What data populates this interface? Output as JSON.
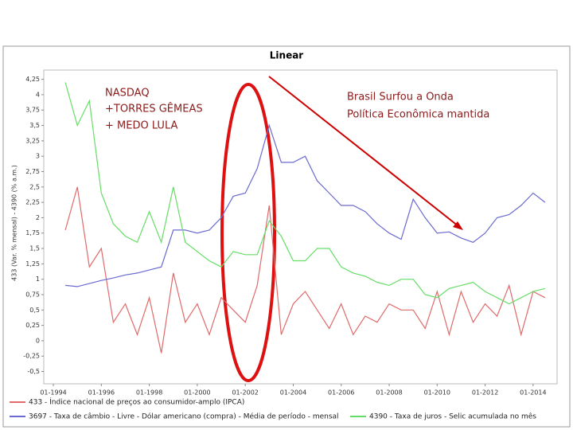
{
  "chart_data": {
    "type": "line",
    "title": "Linear",
    "y_label": "433 (Var. % mensal) - 4390 (% a.m.)",
    "annotations": [
      "NASDAQ",
      "+TORRES  GÊMEAS",
      "+ MEDO LULA",
      "Brasil Surfou a Onda",
      "Política Econômica mantida"
    ],
    "xlim": [
      1993.6,
      2015
    ],
    "ylim": [
      -0.7,
      4.4
    ],
    "xticks": [
      {
        "value": 1994,
        "label": "01-1994"
      },
      {
        "value": 1996,
        "label": "01-1996"
      },
      {
        "value": 1998,
        "label": "01-1998"
      },
      {
        "value": 2000,
        "label": "01-2000"
      },
      {
        "value": 2002,
        "label": "01-2002"
      },
      {
        "value": 2004,
        "label": "01-2004"
      },
      {
        "value": 2006,
        "label": "01-2006"
      },
      {
        "value": 2008,
        "label": "01-2008"
      },
      {
        "value": 2010,
        "label": "01-2010"
      },
      {
        "value": 2012,
        "label": "01-2012"
      },
      {
        "value": 2014,
        "label": "01-2014"
      }
    ],
    "yticks": [
      {
        "value": 4.25,
        "label": "4,25"
      },
      4,
      {
        "value": 3.75,
        "label": "3,75"
      },
      {
        "value": 3.5,
        "label": "3,5"
      },
      {
        "value": 3.25,
        "label": "3,25"
      },
      3,
      {
        "value": 2.75,
        "label": "2,75"
      },
      {
        "value": 2.5,
        "label": "2,5"
      },
      {
        "value": 2.25,
        "label": "2,25"
      },
      2,
      {
        "value": 1.75,
        "label": "1,75"
      },
      {
        "value": 1.5,
        "label": "1,5"
      },
      {
        "value": 1.25,
        "label": "1,25"
      },
      1,
      {
        "value": 0.75,
        "label": "0,75"
      },
      {
        "value": 0.5,
        "label": "0,5"
      },
      {
        "value": 0.25,
        "label": "0,25"
      },
      0,
      {
        "value": -0.25,
        "label": "-0,25"
      },
      {
        "value": -0.5,
        "label": "-0,5"
      }
    ],
    "x": [
      1994.5,
      1995,
      1995.5,
      1996,
      1996.5,
      1997,
      1997.5,
      1998,
      1998.5,
      1999,
      1999.5,
      2000,
      2000.5,
      2001,
      2001.5,
      2002,
      2002.5,
      2003,
      2003.5,
      2004,
      2004.5,
      2005,
      2005.5,
      2006,
      2006.5,
      2007,
      2007.5,
      2008,
      2008.5,
      2009,
      2009.5,
      2010,
      2010.5,
      2011,
      2011.5,
      2012,
      2012.5,
      2013,
      2013.5,
      2014,
      2014.5
    ],
    "series": [
      {
        "name": "433 - Índice nacional de preços ao consumidor-amplo (IPCA)",
        "color": "#e06a6a",
        "values": [
          1.8,
          2.5,
          1.2,
          1.5,
          0.3,
          0.6,
          0.1,
          0.7,
          -0.2,
          1.1,
          0.3,
          0.6,
          0.1,
          0.7,
          0.5,
          0.3,
          0.9,
          2.2,
          0.1,
          0.6,
          0.8,
          0.5,
          0.2,
          0.6,
          0.1,
          0.4,
          0.3,
          0.6,
          0.5,
          0.5,
          0.2,
          0.8,
          0.1,
          0.8,
          0.3,
          0.6,
          0.4,
          0.9,
          0.1,
          0.8,
          0.7
        ]
      },
      {
        "name": "3697 - Taxa de câmbio - Livre - Dólar americano (compra) - Média de período - mensal",
        "color": "#6a6ad0",
        "values": [
          0.9,
          0.88,
          0.93,
          0.98,
          1.02,
          1.07,
          1.1,
          1.15,
          1.2,
          1.8,
          1.8,
          1.75,
          1.8,
          2.0,
          2.35,
          2.4,
          2.8,
          3.5,
          2.9,
          2.9,
          3.0,
          2.6,
          2.4,
          2.2,
          2.2,
          2.1,
          1.9,
          1.75,
          1.65,
          2.3,
          2.0,
          1.75,
          1.77,
          1.67,
          1.6,
          1.75,
          2.0,
          2.05,
          2.2,
          2.4,
          2.25
        ]
      },
      {
        "name": "4390 - Taxa de juros - Selic acumulada no mês",
        "color": "#66dd66",
        "values": [
          4.2,
          3.5,
          3.9,
          2.4,
          1.9,
          1.7,
          1.6,
          2.1,
          1.6,
          2.5,
          1.6,
          1.45,
          1.3,
          1.2,
          1.45,
          1.4,
          1.4,
          1.95,
          1.7,
          1.3,
          1.3,
          1.5,
          1.5,
          1.2,
          1.1,
          1.05,
          0.95,
          0.9,
          1.0,
          1.0,
          0.75,
          0.7,
          0.85,
          0.9,
          0.95,
          0.8,
          0.7,
          0.6,
          0.7,
          0.8,
          0.85
        ]
      }
    ]
  }
}
